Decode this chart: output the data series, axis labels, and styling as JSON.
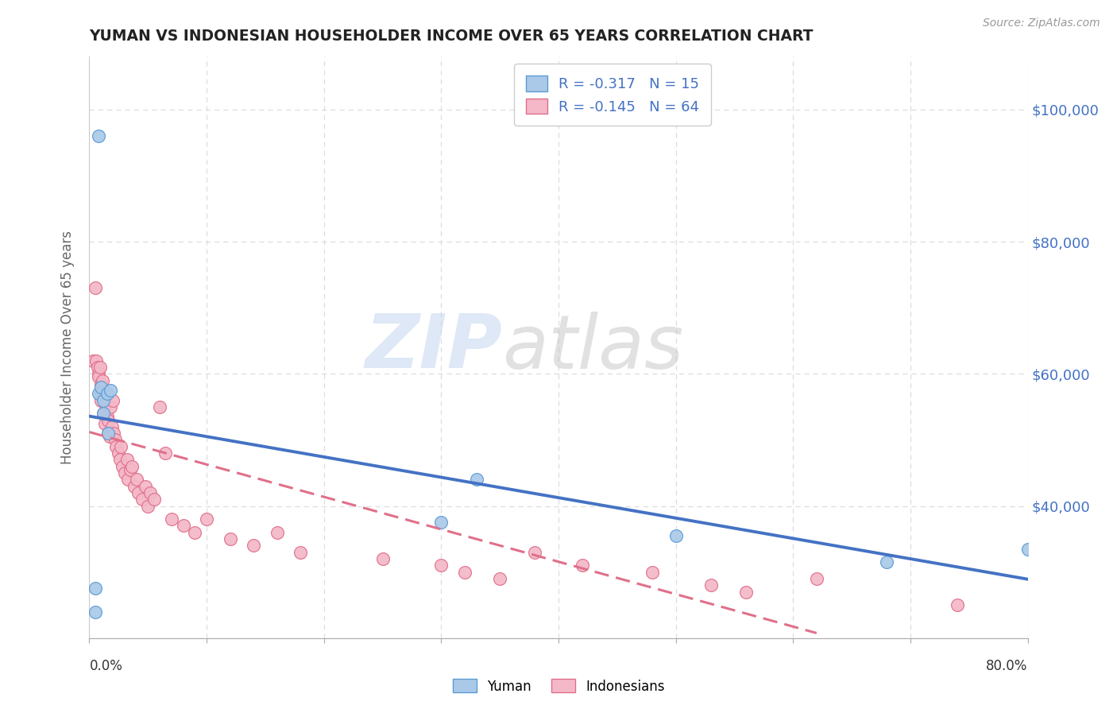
{
  "title": "YUMAN VS INDONESIAN HOUSEHOLDER INCOME OVER 65 YEARS CORRELATION CHART",
  "source": "Source: ZipAtlas.com",
  "ylabel": "Householder Income Over 65 years",
  "yuman_legend": "Yuman",
  "indonesian_legend": "Indonesians",
  "yuman_R": -0.317,
  "yuman_N": 15,
  "indonesian_R": -0.145,
  "indonesian_N": 64,
  "yaxis_ticks": [
    40000,
    60000,
    80000,
    100000
  ],
  "yaxis_labels": [
    "$40,000",
    "$60,000",
    "$80,000",
    "$100,000"
  ],
  "xlim": [
    0,
    80
  ],
  "ylim": [
    20000,
    108000
  ],
  "yuman_color": "#aac9e8",
  "yuman_edge_color": "#5b9bd5",
  "indonesian_color": "#f4b8c8",
  "indonesian_edge_color": "#e0708a",
  "yuman_line_color": "#4472c4",
  "indonesian_line_color": "#e0708a",
  "bg_color": "#ffffff",
  "grid_color": "#dddddd",
  "title_color": "#222222",
  "right_label_color": "#4472c4",
  "yuman_x": [
    0.5,
    0.5,
    0.8,
    0.8,
    1.0,
    1.2,
    1.2,
    1.5,
    1.6,
    1.8,
    30.0,
    33.0,
    50.0,
    68.0,
    80.0
  ],
  "yuman_y": [
    24000,
    27500,
    96000,
    57000,
    58000,
    54000,
    56000,
    57000,
    51000,
    57500,
    37500,
    44000,
    35500,
    31500,
    33500
  ],
  "indonesian_x": [
    0.3,
    0.5,
    0.6,
    0.7,
    0.8,
    0.8,
    0.9,
    1.0,
    1.0,
    1.0,
    1.1,
    1.2,
    1.2,
    1.3,
    1.3,
    1.4,
    1.5,
    1.6,
    1.6,
    1.7,
    1.8,
    1.9,
    2.0,
    2.1,
    2.2,
    2.3,
    2.5,
    2.6,
    2.7,
    2.8,
    3.0,
    3.2,
    3.3,
    3.5,
    3.6,
    3.8,
    4.0,
    4.2,
    4.5,
    4.8,
    5.0,
    5.2,
    5.5,
    6.0,
    6.5,
    7.0,
    8.0,
    9.0,
    10.0,
    12.0,
    14.0,
    16.0,
    18.0,
    25.0,
    30.0,
    32.0,
    35.0,
    38.0,
    42.0,
    48.0,
    53.0,
    56.0,
    62.0,
    74.0
  ],
  "indonesian_y": [
    62000,
    73000,
    62000,
    61000,
    60000,
    59500,
    61000,
    57000,
    56000,
    58500,
    59000,
    54000,
    56500,
    52500,
    56000,
    55500,
    53500,
    51000,
    53000,
    50500,
    55000,
    52000,
    56000,
    51000,
    50000,
    49000,
    48000,
    47000,
    49000,
    46000,
    45000,
    47000,
    44000,
    45500,
    46000,
    43000,
    44000,
    42000,
    41000,
    43000,
    40000,
    42000,
    41000,
    55000,
    48000,
    38000,
    37000,
    36000,
    38000,
    35000,
    34000,
    36000,
    33000,
    32000,
    31000,
    30000,
    29000,
    33000,
    31000,
    30000,
    28000,
    27000,
    29000,
    25000
  ]
}
